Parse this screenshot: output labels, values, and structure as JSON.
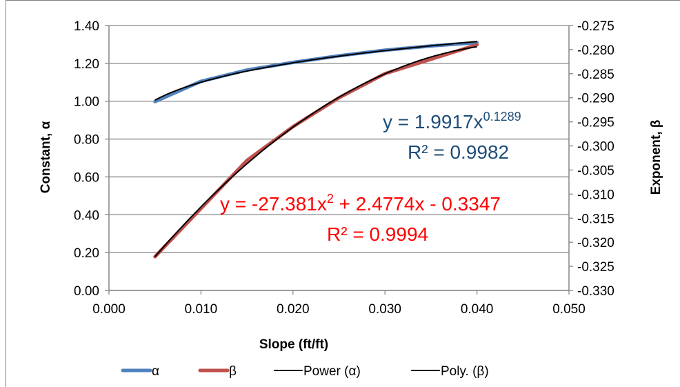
{
  "chart_data": {
    "type": "line",
    "xlabel": "Slope (ft/ft)",
    "ylabel": "Constant, α",
    "y2label": "Exponent, β",
    "xlim": [
      0,
      0.05
    ],
    "ylim": [
      0,
      1.4
    ],
    "y2lim": [
      -0.33,
      -0.275
    ],
    "x_ticks": [
      "0.000",
      "0.010",
      "0.020",
      "0.030",
      "0.040",
      "0.050"
    ],
    "y_ticks": [
      "0.00",
      "0.20",
      "0.40",
      "0.60",
      "0.80",
      "1.00",
      "1.20",
      "1.40"
    ],
    "y2_ticks": [
      "-0.330",
      "-0.325",
      "-0.320",
      "-0.315",
      "-0.310",
      "-0.305",
      "-0.300",
      "-0.295",
      "-0.290",
      "-0.285",
      "-0.280",
      "-0.275"
    ],
    "grid": true,
    "legend_position": "bottom",
    "series": [
      {
        "name": "α",
        "axis": "left",
        "color": "#4f81bd",
        "x": [
          0.005,
          0.01,
          0.015,
          0.02,
          0.025,
          0.03,
          0.035,
          0.04
        ],
        "y": [
          0.998,
          1.105,
          1.165,
          1.205,
          1.24,
          1.27,
          1.292,
          1.31
        ]
      },
      {
        "name": "β",
        "axis": "right",
        "color": "#c0504d",
        "x": [
          0.005,
          0.01,
          0.015,
          0.02,
          0.025,
          0.03,
          0.035,
          0.04
        ],
        "y": [
          -0.323,
          -0.313,
          -0.303,
          -0.296,
          -0.29,
          -0.285,
          -0.282,
          -0.279
        ]
      }
    ],
    "trendlines": [
      {
        "name": "Power (α)",
        "axis": "left",
        "color": "#000000",
        "kind": "power",
        "a": 1.9917,
        "b": 0.1289
      },
      {
        "name": "Poly. (β)",
        "axis": "right",
        "color": "#000000",
        "kind": "poly2",
        "c2": -27.381,
        "c1": 2.4774,
        "c0": -0.3347
      }
    ],
    "annotations": {
      "power_eq_prefix": "y = 1.9917x",
      "power_eq_exp": "0.1289",
      "power_r2": "R² = 0.9982",
      "poly_eq_prefix": "y = -27.381x",
      "poly_eq_exp": "2",
      "poly_eq_suffix": " + 2.4774x - 0.3347",
      "poly_r2": "R² = 0.9994"
    }
  }
}
